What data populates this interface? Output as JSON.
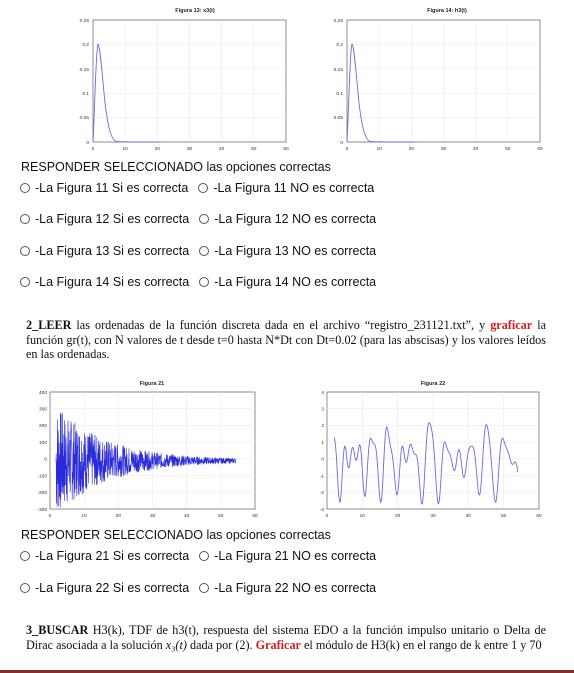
{
  "figures_top": [
    {
      "title": "Figura 13: x3(t)",
      "yticks": [
        "0.25",
        "0.2",
        "0.15",
        "0.1",
        "0.05",
        "0"
      ],
      "xticks": [
        "0",
        "10",
        "20",
        "30",
        "40",
        "50",
        "60"
      ]
    },
    {
      "title": "Figura 14: h3(t)",
      "yticks": [
        "0.25",
        "0.2",
        "0.15",
        "0.1",
        "0.05",
        "0"
      ],
      "xticks": [
        "0",
        "10",
        "20",
        "30",
        "40",
        "50",
        "60"
      ]
    }
  ],
  "figures_mid": [
    {
      "title": "Figura 21",
      "yticks": [
        "400",
        "300",
        "200",
        "100",
        "0",
        "-100",
        "-200",
        "-300"
      ],
      "xticks": [
        "0",
        "10",
        "20",
        "30",
        "40",
        "50",
        "60"
      ]
    },
    {
      "title": "Figura 22",
      "yticks": [
        "4",
        "3",
        "2",
        "1",
        "0",
        "-1",
        "-2",
        "-3"
      ],
      "xticks": [
        "0",
        "10",
        "20",
        "30",
        "40",
        "50",
        "60"
      ]
    }
  ],
  "section1": {
    "heading": "RESPONDER SELECCIONADO las opciones correctas",
    "rows": [
      {
        "yes": "-La Figura 11 Si es correcta",
        "no": "-La Figura 11 NO es correcta"
      },
      {
        "yes": "-La Figura 12 Si es correcta",
        "no": "-La Figura 12 NO es correcta"
      },
      {
        "yes": "-La Figura 13 Si es correcta",
        "no": "-La Figura 13 NO es correcta"
      },
      {
        "yes": "-La Figura 14 Si es correcta",
        "no": "-La Figura 14 NO es correcta"
      }
    ]
  },
  "paragraph2": {
    "lead": "2_LEER",
    "t1": " las ordenadas de la función discreta dada en el archivo “registro_231121.txt”, y ",
    "red": "graficar",
    "t2": " la función gr(t), con N valores de t desde t=0 hasta N*Dt con Dt=0.02 (para las abscisas) y los valores leídos en las ordenadas."
  },
  "section2": {
    "heading": "RESPONDER SELECCIONADO las opciones correctas",
    "rows": [
      {
        "yes": "-La Figura 21 Si es correcta",
        "no": "-La Figura 21 NO es correcta"
      },
      {
        "yes": "-La Figura 22 Si es correcta",
        "no": "-La Figura 22 NO es correcta"
      }
    ]
  },
  "paragraph3": {
    "lead": "3_BUSCAR",
    "t1": " H3(k), TDF de h3(t), respuesta del sistema EDO a la función impulso unitario o Delta de Dirac asociada a la solución ",
    "math": "x₃(t)",
    "t2": " dada por (2). ",
    "red": "Graficar",
    "t3": " el módulo de H3(k) en el rango de k entre 1 y 70"
  },
  "colors": {
    "plot_line": "#3b3bd6",
    "accent_red": "#d21e1e"
  }
}
